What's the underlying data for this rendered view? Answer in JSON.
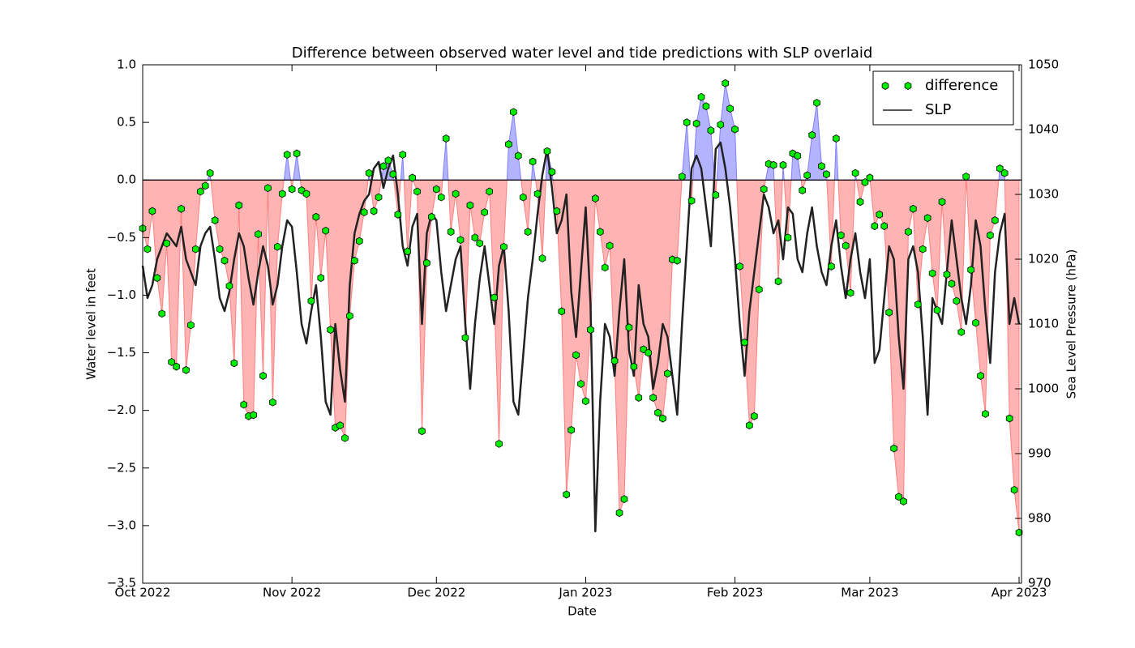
{
  "chart_data": {
    "type": "line",
    "title": "Difference between observed water level and tide predictions with SLP overlaid",
    "xlabel": "Date",
    "ylabel": "Water level in feet",
    "y2label": "Sea Level Pressure (hPa)",
    "xlim": [
      0,
      182.5
    ],
    "xticks": [
      {
        "value": 0,
        "label": "Oct 2022"
      },
      {
        "value": 31,
        "label": "Nov 2022"
      },
      {
        "value": 61,
        "label": "Dec 2022"
      },
      {
        "value": 92,
        "label": "Jan 2023"
      },
      {
        "value": 123,
        "label": "Feb 2023"
      },
      {
        "value": 151,
        "label": "Mar 2023"
      },
      {
        "value": 182,
        "label": "Apr 2023"
      }
    ],
    "ylim": [
      -3.5,
      1.0
    ],
    "yticks": [
      {
        "value": -3.5,
        "label": "−3.5"
      },
      {
        "value": -3.0,
        "label": "−3.0"
      },
      {
        "value": -2.5,
        "label": "−2.5"
      },
      {
        "value": -2.0,
        "label": "−2.0"
      },
      {
        "value": -1.5,
        "label": "−1.5"
      },
      {
        "value": -1.0,
        "label": "−1.0"
      },
      {
        "value": -0.5,
        "label": "−0.5"
      },
      {
        "value": 0,
        "label": "0.0"
      },
      {
        "value": 0.5,
        "label": "0.5"
      },
      {
        "value": 1.0,
        "label": "1.0"
      }
    ],
    "y2lim": [
      970,
      1050
    ],
    "y2ticks": [
      970,
      980,
      990,
      1000,
      1010,
      1020,
      1030,
      1040,
      1050
    ],
    "legend": "upper right",
    "fill_below_color": "#ff8080",
    "fill_above_color": "#8080ff",
    "x": [
      0,
      1,
      2,
      3,
      4,
      5,
      6,
      7,
      8,
      9,
      10,
      11,
      12,
      13,
      14,
      15,
      16,
      17,
      18,
      19,
      20,
      21,
      22,
      23,
      24,
      25,
      26,
      27,
      28,
      29,
      30,
      31,
      32,
      33,
      34,
      35,
      36,
      37,
      38,
      39,
      40,
      41,
      42,
      43,
      44,
      45,
      46,
      47,
      48,
      49,
      50,
      51,
      52,
      53,
      54,
      55,
      56,
      57,
      58,
      59,
      60,
      61,
      62,
      63,
      64,
      65,
      66,
      67,
      68,
      69,
      70,
      71,
      72,
      73,
      74,
      75,
      76,
      77,
      78,
      79,
      80,
      81,
      82,
      83,
      84,
      85,
      86,
      87,
      88,
      89,
      90,
      91,
      92,
      93,
      94,
      95,
      96,
      97,
      98,
      99,
      100,
      101,
      102,
      103,
      104,
      105,
      106,
      107,
      108,
      109,
      110,
      111,
      112,
      113,
      114,
      115,
      116,
      117,
      118,
      119,
      120,
      121,
      122,
      123,
      124,
      125,
      126,
      127,
      128,
      129,
      130,
      131,
      132,
      133,
      134,
      135,
      136,
      137,
      138,
      139,
      140,
      141,
      142,
      143,
      144,
      145,
      146,
      147,
      148,
      149,
      150,
      151,
      152,
      153,
      154,
      155,
      156,
      157,
      158,
      159,
      160,
      161,
      162,
      163,
      164,
      165,
      166,
      167,
      168,
      169,
      170,
      171,
      172,
      173,
      174,
      175,
      176,
      177,
      178,
      179,
      180,
      181,
      182
    ],
    "series": [
      {
        "name": "difference",
        "color": "#00ee00",
        "values": [
          -0.42,
          -0.6,
          -0.27,
          -0.85,
          -1.16,
          -0.55,
          -1.58,
          -1.62,
          -0.25,
          -1.65,
          -1.26,
          -0.6,
          -0.1,
          -0.05,
          0.06,
          -0.35,
          -0.6,
          -0.7,
          -0.92,
          -1.59,
          -0.22,
          -1.95,
          -2.05,
          -2.04,
          -0.47,
          -1.7,
          -0.07,
          -1.93,
          -0.58,
          -0.12,
          0.22,
          -0.08,
          0.23,
          -0.09,
          -0.12,
          -1.05,
          -0.32,
          -0.85,
          -0.44,
          -1.3,
          -2.15,
          -2.13,
          -2.24,
          -1.18,
          -0.7,
          -0.53,
          -0.28,
          0.06,
          -0.27,
          -0.15,
          0.12,
          0.17,
          0.05,
          -0.3,
          0.22,
          -0.62,
          0.02,
          -0.1,
          -2.18,
          -0.72,
          -0.32,
          -0.08,
          -0.15,
          0.36,
          -0.45,
          -0.12,
          -0.52,
          -1.37,
          -0.22,
          -0.5,
          -0.55,
          -0.28,
          -0.1,
          -1.02,
          -2.29,
          -0.58,
          0.31,
          0.59,
          0.21,
          -0.15,
          -0.45,
          0.16,
          -0.12,
          -0.68,
          0.25,
          0.07,
          -0.27,
          -1.14,
          -2.73,
          -2.17,
          -1.52,
          -1.77,
          -1.92,
          -1.3,
          -0.16,
          -0.45,
          -0.76,
          -0.57,
          -1.57,
          -2.89,
          -2.77,
          -1.28,
          -1.62,
          -1.89,
          -1.47,
          -1.5,
          -1.89,
          -2.02,
          -2.07,
          -1.68,
          -0.69,
          -0.7,
          0.03,
          0.5,
          -0.18,
          0.49,
          0.72,
          0.64,
          0.43,
          -0.13,
          0.48,
          0.84,
          0.62,
          0.44,
          -0.75,
          -1.41,
          -2.13,
          -2.05,
          -0.95,
          -0.08,
          0.14,
          0.13,
          -0.88,
          0.13,
          -0.5,
          0.23,
          0.21,
          -0.09,
          0.04,
          0.39,
          0.67,
          0.12,
          0.05,
          -0.75,
          0.36,
          -0.48,
          -0.57,
          -0.98,
          0.06,
          -0.19,
          -0.02,
          0.02,
          -0.4,
          -0.3,
          -0.4,
          -1.15,
          -2.33,
          -2.75,
          -2.79,
          -0.45,
          -0.25,
          -1.08,
          -0.6,
          -0.33,
          -0.81,
          -1.13,
          -0.19,
          -0.82,
          -0.9,
          -1.05,
          -1.32,
          0.03,
          -0.78,
          -1.24,
          -1.7,
          -2.03,
          -0.48,
          -0.35,
          0.1,
          0.06,
          -2.07,
          -2.69,
          -3.06
        ]
      },
      {
        "name": "SLP",
        "color": "#222222",
        "axis": "y2",
        "values": [
          1019,
          1014,
          1016,
          1020,
          1022,
          1024,
          1023,
          1022,
          1025,
          1020,
          1018,
          1016,
          1022,
          1024,
          1025,
          1020,
          1014,
          1012,
          1015,
          1020,
          1024,
          1022,
          1017,
          1013,
          1018,
          1022,
          1019,
          1013,
          1016,
          1022,
          1026,
          1025,
          1018,
          1010,
          1007,
          1012,
          1016,
          1008,
          998,
          996,
          1010,
          1003,
          998,
          1016,
          1024,
          1027,
          1029,
          1030,
          1034,
          1035,
          1031,
          1034,
          1036,
          1030,
          1022,
          1019,
          1025,
          1027,
          1010,
          1024,
          1027,
          1026,
          1018,
          1012,
          1016,
          1020,
          1022,
          1010,
          1000,
          1010,
          1017,
          1022,
          1016,
          1010,
          1019,
          1022,
          1012,
          998,
          996,
          1005,
          1014,
          1020,
          1027,
          1033,
          1037,
          1031,
          1024,
          1026,
          1030,
          1015,
          1008,
          1018,
          1028,
          1013,
          978,
          998,
          1010,
          1008,
          1002,
          1012,
          1020,
          1006,
          1002,
          1016,
          1010,
          1008,
          1000,
          1004,
          1010,
          1008,
          1002,
          996,
          1010,
          1022,
          1034,
          1036,
          1034,
          1028,
          1022,
          1037,
          1038,
          1034,
          1028,
          1020,
          1010,
          1002,
          1012,
          1018,
          1024,
          1030,
          1028,
          1024,
          1026,
          1020,
          1028,
          1027,
          1020,
          1018,
          1024,
          1028,
          1022,
          1018,
          1016,
          1022,
          1026,
          1019,
          1014,
          1020,
          1024,
          1018,
          1014,
          1020,
          1004,
          1006,
          1014,
          1022,
          1020,
          1008,
          1000,
          1020,
          1022,
          1018,
          1008,
          996,
          1014,
          1012,
          1010,
          1018,
          1026,
          1020,
          1014,
          1010,
          1016,
          1026,
          1022,
          1012,
          1004,
          1018,
          1024,
          1027,
          1010,
          1014,
          1010
        ]
      }
    ]
  }
}
